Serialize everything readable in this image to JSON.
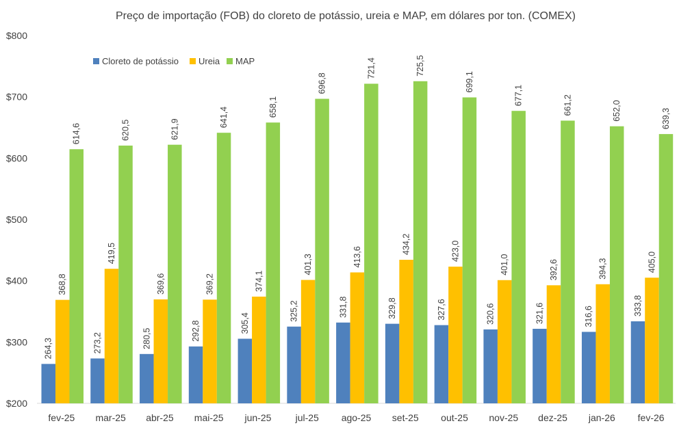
{
  "chart_data": {
    "type": "bar",
    "title": "Preço de importação (FOB) do cloreto de potássio, ureia e MAP, em dólares por ton. (COMEX)",
    "categories": [
      "fev-25",
      "mar-25",
      "abr-25",
      "mai-25",
      "jun-25",
      "jul-25",
      "ago-25",
      "set-25",
      "out-25",
      "nov-25",
      "dez-25",
      "jan-26",
      "fev-26"
    ],
    "series": [
      {
        "name": "Cloreto de potássio",
        "color": "#4f81bd",
        "values": [
          264.3,
          273.2,
          280.5,
          292.8,
          305.4,
          325.2,
          331.8,
          329.8,
          327.6,
          320.6,
          321.6,
          316.6,
          333.8
        ],
        "labels": [
          "264,3",
          "273,2",
          "280,5",
          "292,8",
          "305,4",
          "325,2",
          "331,8",
          "329,8",
          "327,6",
          "320,6",
          "321,6",
          "316,6",
          "333,8"
        ]
      },
      {
        "name": "Ureia",
        "color": "#ffc000",
        "values": [
          368.8,
          419.5,
          369.6,
          369.2,
          374.1,
          401.3,
          413.6,
          434.2,
          423.0,
          401.0,
          392.6,
          394.3,
          405.0
        ],
        "labels": [
          "368,8",
          "419,5",
          "369,6",
          "369,2",
          "374,1",
          "401,3",
          "413,6",
          "434,2",
          "423,0",
          "401,0",
          "392,6",
          "394,3",
          "405,0"
        ]
      },
      {
        "name": "MAP",
        "color": "#92d050",
        "values": [
          614.6,
          620.5,
          621.9,
          641.4,
          658.1,
          696.8,
          721.4,
          725.5,
          699.1,
          677.1,
          661.2,
          652.0,
          639.3
        ],
        "labels": [
          "614,6",
          "620,5",
          "621,9",
          "641,4",
          "658,1",
          "696,8",
          "721,4",
          "725,5",
          "699,1",
          "677,1",
          "661,2",
          "652,0",
          "639,3"
        ]
      }
    ],
    "ylim": [
      200,
      800
    ],
    "yticks": [
      200,
      300,
      400,
      500,
      600,
      700,
      800
    ],
    "ytick_labels": [
      "$200",
      "$300",
      "$400",
      "$500",
      "$600",
      "$700",
      "$800"
    ],
    "xlabel": "",
    "ylabel": "",
    "grid": false,
    "legend_position": "top-left"
  }
}
